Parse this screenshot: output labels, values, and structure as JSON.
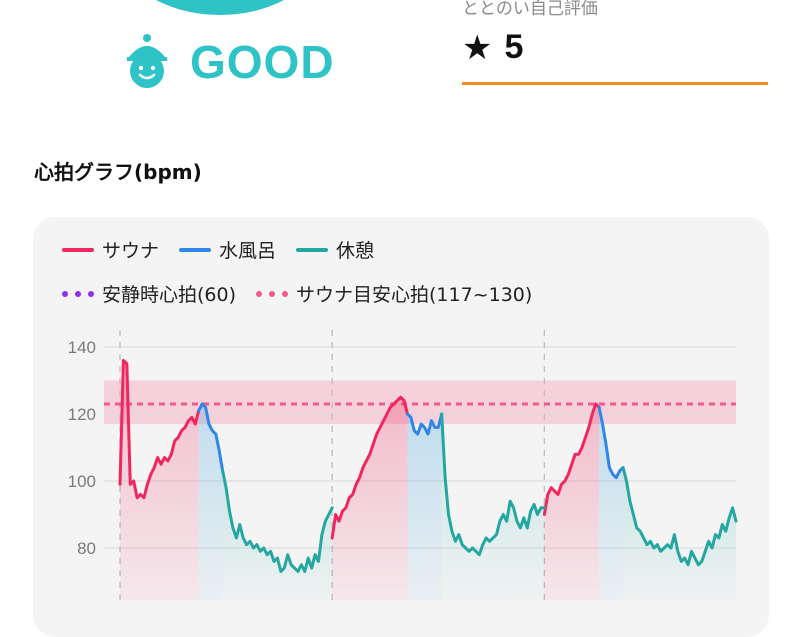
{
  "status": {
    "icon": "sauna-hat-face-icon",
    "text": "GOOD",
    "color": "#2ec3c6"
  },
  "rating": {
    "label": "ととのい自己評価",
    "star_icon": "star-icon",
    "star_glyph": "★",
    "value": "5",
    "underline_color": "#f58a1f"
  },
  "section_title": "心拍グラフ(bpm)",
  "legend": {
    "sauna": {
      "label": "サウナ",
      "color": "#f0275e"
    },
    "water": {
      "label": "水風呂",
      "color": "#2f86e8"
    },
    "rest": {
      "label": "休憩",
      "color": "#24a7a1"
    },
    "resting_hr": {
      "label": "安静時心拍(60)",
      "color": "#8f2ff0"
    },
    "target_hr": {
      "label": "サウナ目安心拍(117~130)",
      "color": "#f05a8c"
    }
  },
  "chart_data": {
    "type": "line",
    "ylabel": "",
    "xlabel": "",
    "ylim": [
      66,
      144
    ],
    "yticks": [
      "140",
      "120",
      "100",
      "80"
    ],
    "target_band": [
      117,
      130
    ],
    "target_line": 123,
    "series": [
      {
        "name": "サウナ",
        "segments": [
          [
            [
              0,
              99
            ],
            [
              1,
              136
            ],
            [
              2,
              135
            ],
            [
              3,
              99
            ],
            [
              4,
              100
            ],
            [
              5,
              95
            ],
            [
              6,
              96
            ],
            [
              7,
              95
            ],
            [
              8,
              99
            ],
            [
              9,
              102
            ],
            [
              10,
              104
            ],
            [
              11,
              107
            ],
            [
              12,
              105
            ],
            [
              13,
              107
            ],
            [
              14,
              106
            ],
            [
              15,
              108
            ],
            [
              16,
              112
            ],
            [
              17,
              113
            ],
            [
              18,
              115
            ],
            [
              19,
              116
            ],
            [
              20,
              118
            ],
            [
              21,
              119
            ],
            [
              22,
              117
            ],
            [
              23,
              121
            ]
          ],
          [
            [
              62,
              83
            ],
            [
              63,
              90
            ],
            [
              64,
              88
            ],
            [
              65,
              91
            ],
            [
              66,
              92
            ],
            [
              67,
              95
            ],
            [
              68,
              96
            ],
            [
              69,
              99
            ],
            [
              70,
              101
            ],
            [
              71,
              104
            ],
            [
              72,
              106
            ],
            [
              73,
              108
            ],
            [
              74,
              111
            ],
            [
              75,
              114
            ],
            [
              76,
              116
            ],
            [
              77,
              118
            ],
            [
              78,
              120
            ],
            [
              79,
              122
            ],
            [
              80,
              123
            ],
            [
              81,
              124
            ],
            [
              82,
              125
            ],
            [
              83,
              124
            ],
            [
              84,
              120
            ]
          ],
          [
            [
              124,
              90
            ],
            [
              125,
              96
            ],
            [
              126,
              98
            ],
            [
              127,
              97
            ],
            [
              128,
              96
            ],
            [
              129,
              99
            ],
            [
              130,
              100
            ],
            [
              131,
              102
            ],
            [
              132,
              105
            ],
            [
              133,
              108
            ],
            [
              134,
              108
            ],
            [
              135,
              110
            ],
            [
              136,
              113
            ],
            [
              137,
              116
            ],
            [
              138,
              120
            ],
            [
              139,
              123
            ],
            [
              140,
              122
            ]
          ]
        ]
      },
      {
        "name": "水風呂",
        "segments": [
          [
            [
              23,
              121
            ],
            [
              24,
              123
            ],
            [
              25,
              122
            ],
            [
              26,
              117
            ],
            [
              27,
              115
            ],
            [
              28,
              114
            ],
            [
              29,
              109
            ],
            [
              30,
              103
            ]
          ],
          [
            [
              84,
              120
            ],
            [
              85,
              119
            ],
            [
              86,
              115
            ],
            [
              87,
              114
            ],
            [
              88,
              117
            ],
            [
              89,
              116
            ],
            [
              90,
              114
            ],
            [
              91,
              118
            ],
            [
              92,
              116
            ],
            [
              93,
              116
            ],
            [
              94,
              120
            ]
          ],
          [
            [
              140,
              122
            ],
            [
              141,
              117
            ],
            [
              142,
              111
            ],
            [
              143,
              104
            ],
            [
              144,
              102
            ],
            [
              145,
              101
            ],
            [
              146,
              103
            ],
            [
              147,
              104
            ]
          ]
        ]
      },
      {
        "name": "休憩",
        "segments": [
          [
            [
              30,
              103
            ],
            [
              31,
              98
            ],
            [
              32,
              91
            ],
            [
              33,
              86
            ],
            [
              34,
              83
            ],
            [
              35,
              87
            ],
            [
              36,
              83
            ],
            [
              37,
              81
            ],
            [
              38,
              82
            ],
            [
              39,
              80
            ],
            [
              40,
              81
            ],
            [
              41,
              79
            ],
            [
              42,
              80
            ],
            [
              43,
              78
            ],
            [
              44,
              79
            ],
            [
              45,
              76
            ],
            [
              46,
              77
            ],
            [
              47,
              73
            ],
            [
              48,
              74
            ],
            [
              49,
              78
            ],
            [
              50,
              75
            ],
            [
              51,
              74
            ],
            [
              52,
              73
            ],
            [
              53,
              75
            ],
            [
              54,
              73
            ],
            [
              55,
              77
            ],
            [
              56,
              74
            ],
            [
              57,
              78
            ],
            [
              58,
              76
            ],
            [
              59,
              84
            ],
            [
              60,
              88
            ],
            [
              61,
              90
            ],
            [
              62,
              92
            ]
          ],
          [
            [
              94,
              120
            ],
            [
              95,
              101
            ],
            [
              96,
              90
            ],
            [
              97,
              85
            ],
            [
              98,
              82
            ],
            [
              99,
              84
            ],
            [
              100,
              81
            ],
            [
              101,
              80
            ],
            [
              102,
              79
            ],
            [
              103,
              80
            ],
            [
              104,
              79
            ],
            [
              105,
              78
            ],
            [
              106,
              81
            ],
            [
              107,
              83
            ],
            [
              108,
              82
            ],
            [
              109,
              83
            ],
            [
              110,
              84
            ],
            [
              111,
              88
            ],
            [
              112,
              90
            ],
            [
              113,
              88
            ],
            [
              114,
              94
            ],
            [
              115,
              92
            ],
            [
              116,
              88
            ],
            [
              117,
              86
            ],
            [
              118,
              89
            ],
            [
              119,
              86
            ],
            [
              120,
              91
            ],
            [
              121,
              93
            ],
            [
              122,
              90
            ],
            [
              123,
              92
            ],
            [
              124,
              92
            ]
          ],
          [
            [
              147,
              104
            ],
            [
              148,
              100
            ],
            [
              149,
              94
            ],
            [
              150,
              90
            ],
            [
              151,
              86
            ],
            [
              152,
              85
            ],
            [
              153,
              83
            ],
            [
              154,
              81
            ],
            [
              155,
              82
            ],
            [
              156,
              80
            ],
            [
              157,
              81
            ],
            [
              158,
              79
            ],
            [
              159,
              80
            ],
            [
              160,
              81
            ],
            [
              161,
              80
            ],
            [
              162,
              84
            ],
            [
              163,
              79
            ],
            [
              164,
              76
            ],
            [
              165,
              77
            ],
            [
              166,
              75
            ],
            [
              167,
              79
            ],
            [
              168,
              77
            ],
            [
              169,
              75
            ],
            [
              170,
              76
            ],
            [
              171,
              79
            ],
            [
              172,
              82
            ],
            [
              173,
              80
            ],
            [
              174,
              84
            ],
            [
              175,
              83
            ],
            [
              176,
              87
            ],
            [
              177,
              85
            ],
            [
              178,
              89
            ],
            [
              179,
              92
            ],
            [
              180,
              88
            ]
          ]
        ]
      }
    ],
    "session_markers": [
      0,
      62,
      124
    ]
  }
}
